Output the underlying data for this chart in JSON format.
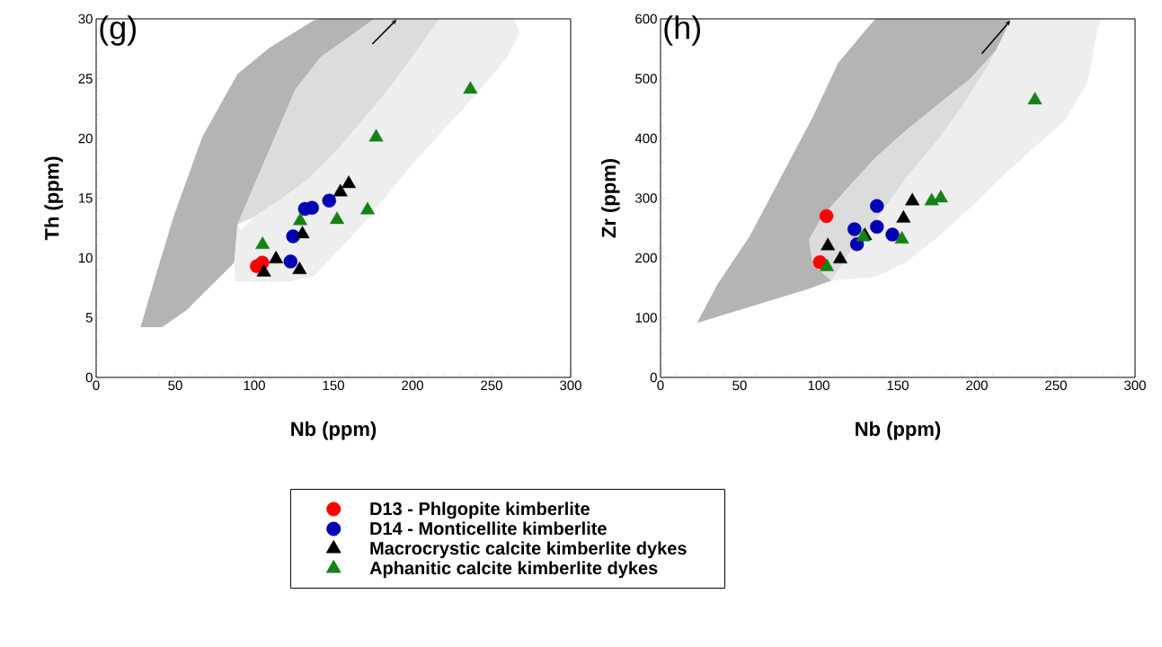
{
  "chart_data": [
    {
      "type": "scatter",
      "title": "(g)",
      "xlabel": "Nb (ppm)",
      "ylabel": "Th (ppm)",
      "xlim": [
        0,
        300
      ],
      "ylim": [
        0,
        30
      ],
      "xticks": [
        0,
        50,
        100,
        150,
        200,
        250,
        300
      ],
      "yticks": [
        0,
        5,
        10,
        15,
        20,
        25,
        30
      ],
      "legend": "bottom",
      "series": [
        {
          "type": "area",
          "color": "#b4b4b4",
          "x": [
            28,
            37.6,
            48.8,
            67,
            89.4,
            109.7,
            138,
            142,
            176,
            142,
            126,
            101.6,
            89.4,
            87.3,
            56.9,
            41.6
          ],
          "values": [
            4.2,
            8.5,
            13.4,
            20.1,
            25.4,
            27.6,
            29.9,
            30,
            30,
            26.8,
            24.1,
            16.6,
            12.8,
            9.6,
            5.6,
            4.2
          ]
        },
        {
          "type": "area",
          "color": "#dcdcdc",
          "x": [
            89.4,
            101.6,
            126,
            142,
            176,
            217,
            201,
            184.8,
            164.5,
            150,
            134,
            117.8,
            99.5
          ],
          "values": [
            12.8,
            16.6,
            24.1,
            26.8,
            30,
            30,
            27,
            24.1,
            20.9,
            18.7,
            16.6,
            15,
            13.4
          ]
        },
        {
          "type": "area",
          "color": "#eeeeee",
          "x": [
            88,
            122,
            138,
            168.6,
            199,
            239.7,
            260,
            268,
            264,
            217,
            201,
            184.8,
            164.5,
            150,
            134,
            117.8,
            99.5,
            91.4,
            89.4,
            87.3
          ],
          "values": [
            8.0,
            8.0,
            8.5,
            12.8,
            17.7,
            23.6,
            26.8,
            28.9,
            30,
            30,
            27,
            24.1,
            20.9,
            18.7,
            16.6,
            15,
            13.4,
            12.3,
            12.8,
            9.6
          ]
        },
        {
          "type": "scatter",
          "name": "D13 - Phlgopite kimberlite",
          "color": "#ff0000",
          "marker": "circle",
          "x": [
            101.6,
            105
          ],
          "values": [
            9.3,
            9.6
          ]
        },
        {
          "type": "scatter",
          "name": "D14 - Monticellite kimberlite",
          "color": "#0000b4",
          "marker": "circle",
          "x": [
            122.9,
            124.5,
            132,
            136.5,
            147.3
          ],
          "values": [
            9.7,
            11.8,
            14.1,
            14.2,
            14.8
          ]
        },
        {
          "type": "scatter",
          "name": "Macrocrystic calcite kimberlite dykes",
          "color": "#000000",
          "marker": "triangle",
          "x": [
            106,
            113.7,
            128.6,
            130.4,
            154.4,
            159.7
          ],
          "values": [
            8.8,
            9.9,
            9.0,
            12.0,
            15.5,
            16.2
          ]
        },
        {
          "type": "scatter",
          "name": "Aphanitic calcite kimberlite dykes",
          "color": "#148214",
          "marker": "triangle",
          "x": [
            105.2,
            129,
            152.3,
            171.6,
            177,
            236.6
          ],
          "values": [
            11.1,
            13.1,
            13.2,
            14.0,
            20.1,
            24.1
          ]
        }
      ]
    },
    {
      "type": "scatter",
      "title": "(h)",
      "xlabel": "Nb (ppm)",
      "ylabel": "Zr (ppm)",
      "xlim": [
        0,
        300
      ],
      "ylim": [
        0,
        600
      ],
      "xticks": [
        0,
        50,
        100,
        150,
        200,
        250,
        300
      ],
      "yticks": [
        0,
        100,
        200,
        300,
        400,
        500,
        600
      ],
      "series": [
        {
          "type": "area",
          "color": "#b4b4b4",
          "x": [
            23,
            36.3,
            56.3,
            76.3,
            96.3,
            112.2,
            132.2,
            136,
            221,
            218,
            212,
            196,
            176,
            156,
            136,
            116,
            102,
            94,
            96.3,
            108,
            92.3,
            62.3
          ],
          "values": [
            91,
            157,
            236,
            336,
            436,
            526,
            589,
            600,
            600,
            579,
            547,
            500,
            458,
            415,
            368,
            310,
            268,
            231,
            189,
            162,
            147,
            123
          ]
        },
        {
          "type": "area",
          "color": "#dcdcdc",
          "x": [
            96.3,
            94,
            102,
            116,
            136,
            156,
            176,
            196,
            212,
            218,
            221,
            222,
            208,
            192,
            176,
            156,
            136,
            120,
            108
          ],
          "values": [
            189,
            231,
            268,
            310,
            368,
            415,
            458,
            500,
            547,
            579,
            600,
            600,
            526,
            458,
            400,
            336,
            263,
            210,
            162
          ]
        },
        {
          "type": "area",
          "color": "#eeeeee",
          "x": [
            108,
            136,
            156,
            176,
            196,
            216,
            236,
            256,
            270,
            276,
            278.6,
            222,
            208,
            192,
            176,
            156,
            136,
            120
          ],
          "values": [
            162,
            168,
            194,
            236,
            284,
            336,
            384,
            431,
            494,
            579,
            600,
            600,
            526,
            458,
            400,
            336,
            263,
            210
          ]
        },
        {
          "type": "scatter",
          "color": "#ff0000",
          "marker": "circle",
          "x": [
            104.9,
            100.7
          ],
          "values": [
            270,
            193
          ]
        },
        {
          "type": "scatter",
          "color": "#0000b4",
          "marker": "circle",
          "x": [
            136.8,
            122.6,
            124.2,
            136.8,
            146.6
          ],
          "values": [
            287,
            248,
            223,
            252,
            239
          ]
        },
        {
          "type": "scatter",
          "color": "#000000",
          "marker": "triangle",
          "x": [
            105.8,
            113.6,
            129.2,
            153.6,
            159.2
          ],
          "values": [
            220,
            198,
            237,
            266,
            295
          ]
        },
        {
          "type": "scatter",
          "color": "#148214",
          "marker": "triangle",
          "x": [
            105.2,
            128.2,
            152.6,
            171.4,
            177.2,
            236.7
          ],
          "values": [
            185,
            235,
            231,
            295,
            300,
            464
          ]
        }
      ]
    }
  ]
}
